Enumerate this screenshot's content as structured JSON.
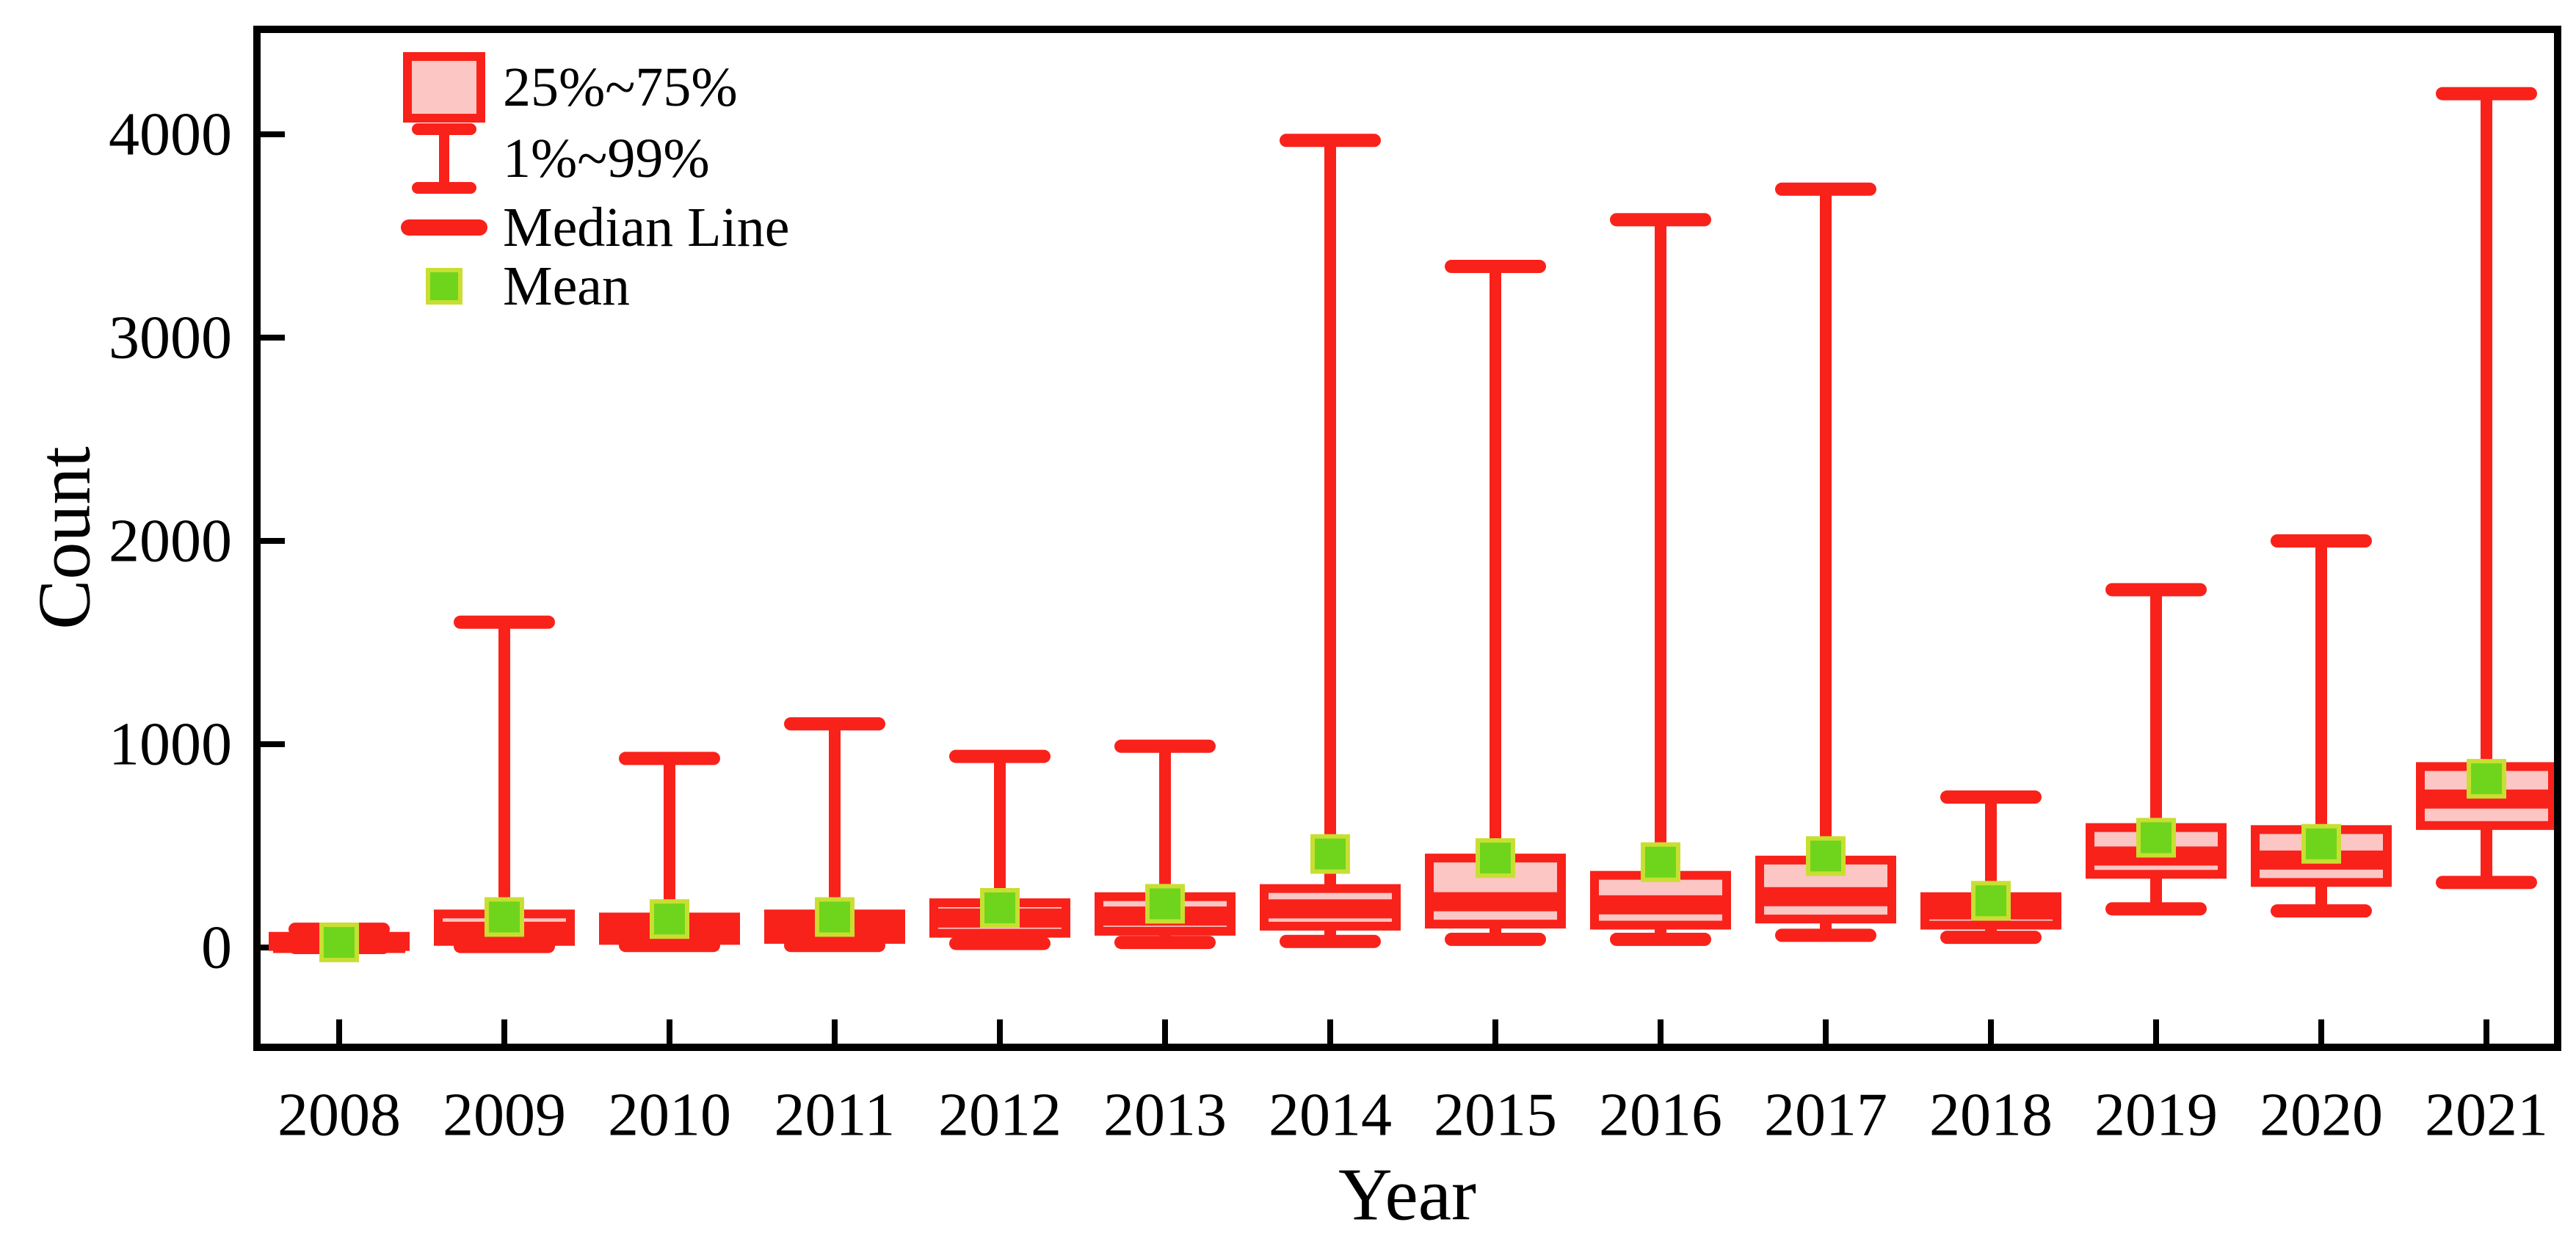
{
  "figure": {
    "background": "#ffffff"
  },
  "colors": {
    "box_edge": "#f8221b",
    "box_fill": "#fbc6c4",
    "median_line": "#f8221b",
    "whisker": "#f8221b",
    "mean_fill": "#6fd41c",
    "mean_edge": "#c8df32",
    "axis": "#000000"
  },
  "legend": {
    "items": [
      {
        "symbol": "box-symbol",
        "label": "25%~75%"
      },
      {
        "symbol": "whisker-symbol",
        "label": "1%~99%"
      },
      {
        "symbol": "median-symbol",
        "label": "Median Line"
      },
      {
        "symbol": "mean-symbol",
        "label": "Mean"
      }
    ]
  },
  "chart_data": {
    "type": "boxplot",
    "title": "",
    "xlabel": "Year",
    "ylabel": "Count",
    "yticks": [
      0,
      1000,
      2000,
      3000,
      4000
    ],
    "ylim": [
      -490,
      4520
    ],
    "grid": false,
    "legend_position": "top-left-inside",
    "whisker_range": "1%~99%",
    "box_range": "25%~75%",
    "categories": [
      "2008",
      "2009",
      "2010",
      "2011",
      "2012",
      "2013",
      "2014",
      "2015",
      "2016",
      "2017",
      "2018",
      "2019",
      "2020",
      "2021"
    ],
    "boxes": [
      {
        "year": "2008",
        "low": 0,
        "q1": 5,
        "median": 20,
        "q3": 55,
        "high": 90,
        "mean": 25
      },
      {
        "year": "2009",
        "low": 5,
        "q1": 30,
        "median": 80,
        "q3": 165,
        "high": 1600,
        "mean": 150
      },
      {
        "year": "2010",
        "low": 10,
        "q1": 35,
        "median": 85,
        "q3": 150,
        "high": 930,
        "mean": 140
      },
      {
        "year": "2011",
        "low": 10,
        "q1": 40,
        "median": 100,
        "q3": 165,
        "high": 1100,
        "mean": 150
      },
      {
        "year": "2012",
        "low": 20,
        "q1": 70,
        "median": 145,
        "q3": 220,
        "high": 940,
        "mean": 195
      },
      {
        "year": "2013",
        "low": 25,
        "q1": 80,
        "median": 155,
        "q3": 250,
        "high": 990,
        "mean": 215
      },
      {
        "year": "2014",
        "low": 30,
        "q1": 105,
        "median": 190,
        "q3": 290,
        "high": 3970,
        "mean": 460
      },
      {
        "year": "2015",
        "low": 40,
        "q1": 115,
        "median": 225,
        "q3": 440,
        "high": 3350,
        "mean": 440
      },
      {
        "year": "2016",
        "low": 40,
        "q1": 110,
        "median": 210,
        "q3": 355,
        "high": 3580,
        "mean": 420
      },
      {
        "year": "2017",
        "low": 60,
        "q1": 140,
        "median": 250,
        "q3": 430,
        "high": 3730,
        "mean": 450
      },
      {
        "year": "2018",
        "low": 50,
        "q1": 110,
        "median": 185,
        "q3": 250,
        "high": 740,
        "mean": 230
      },
      {
        "year": "2019",
        "low": 190,
        "q1": 360,
        "median": 450,
        "q3": 590,
        "high": 1760,
        "mean": 540
      },
      {
        "year": "2020",
        "low": 180,
        "q1": 320,
        "median": 430,
        "q3": 580,
        "high": 2000,
        "mean": 510
      },
      {
        "year": "2021",
        "low": 320,
        "q1": 600,
        "median": 730,
        "q3": 890,
        "high": 4200,
        "mean": 830
      }
    ]
  }
}
